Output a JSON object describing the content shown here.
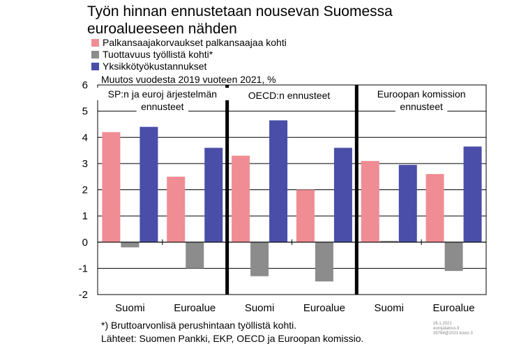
{
  "title": "Työn hinnan ennustetaan nousevan Suomessa euroalueeseen nähden",
  "subtitle": "Muutos vuodesta 2019 vuoteen 2021, %",
  "footnote": "*) Bruttoarvonlisä perushintaan työllistä kohti.",
  "sources": "Lähteet: Suomen Pankki, EKP, OECD ja Euroopan komissio.",
  "meta": [
    "26.1.2021",
    "eurojatalous.fi",
    "39784@2021 kuvio 3"
  ],
  "colors": {
    "series1": "#F08C94",
    "series2": "#8C8C8C",
    "series3": "#4A4EA8"
  },
  "chart_data": {
    "type": "bar",
    "title": "Työn hinnan ennustetaan nousevan Suomessa euroalueeseen nähden",
    "ylim": [
      -2,
      6
    ],
    "yticks": [
      "6",
      "5",
      "4",
      "3",
      "2",
      "1",
      "0",
      "-1",
      "-2"
    ],
    "grid": true,
    "legend_position": "top-left",
    "groups": [
      "SP:n ja euroj­ärjestelmän ennusteet",
      "OECD:n ennusteet",
      "Euroopan komission ennusteet"
    ],
    "group_labels": [
      [
        "SP:n ja euroj ärjestelmän",
        "ennusteet"
      ],
      [
        "OECD:n ennusteet"
      ],
      [
        "Euroopan komission",
        "ennusteet"
      ]
    ],
    "categories": [
      "Suomi",
      "Euroalue",
      "Suomi",
      "Euroalue",
      "Suomi",
      "Euroalue"
    ],
    "series": [
      {
        "name": "Palkansaajakorvaukset palkansaajaa kohti",
        "values": [
          4.2,
          2.5,
          3.3,
          2.0,
          3.1,
          2.6
        ]
      },
      {
        "name": "Tuottavuus työllistä kohti*",
        "values": [
          -0.2,
          -1.0,
          -1.3,
          -1.5,
          0.05,
          -1.1
        ]
      },
      {
        "name": "Yksikkötyökustannukset",
        "values": [
          4.4,
          3.6,
          4.65,
          3.6,
          2.95,
          3.65
        ]
      }
    ]
  }
}
